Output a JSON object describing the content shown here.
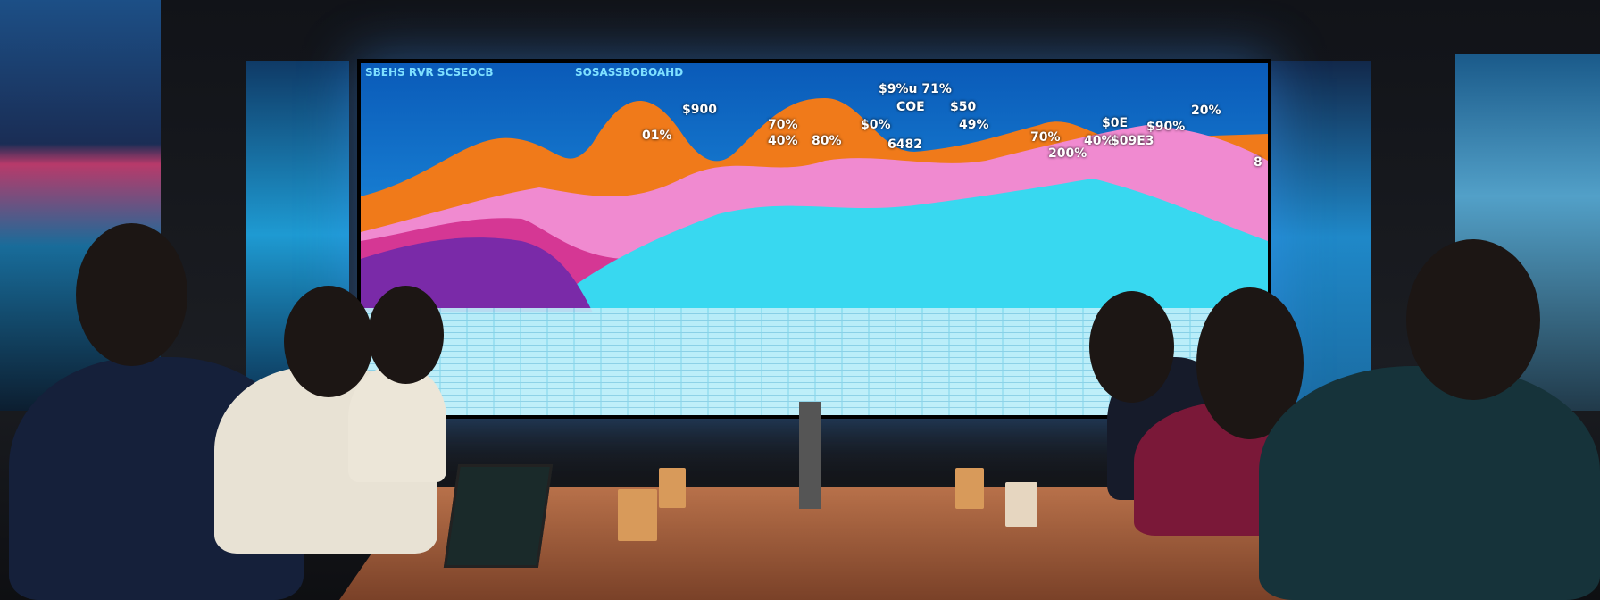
{
  "scene": {
    "description_colors": {
      "screen_blue": "#0a5ab8",
      "orange": "#f07a1a",
      "pink": "#f08ad0",
      "cyan": "#38d8f0",
      "magenta": "#d0288a",
      "table_wood": "#b8714a"
    }
  },
  "screen": {
    "headers": [
      "SBEHS RVR SCSEOCB",
      "SOSASSBOBOAHD"
    ],
    "labels": [
      "$900",
      "01%",
      "70%",
      "40%",
      "80%",
      "$0%",
      "6482",
      "$9%u 71%",
      "COE",
      "$50",
      "49%",
      "70%",
      "200%",
      "$0E",
      "40%",
      "$09E3",
      "$90%",
      "20%",
      "8"
    ]
  }
}
